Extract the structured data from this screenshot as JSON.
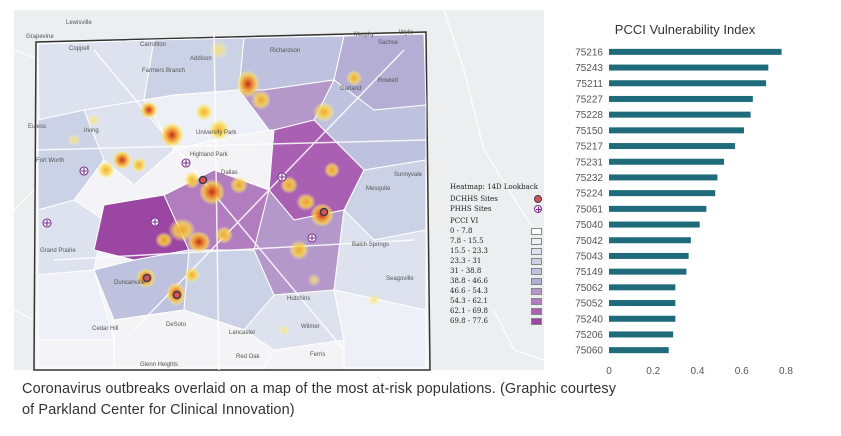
{
  "map": {
    "legend": {
      "heatmap_label": "Heatmap: 14D Lookback",
      "dchhs_label": "DCHHS Sites",
      "phhs_label": "PHHS Sites",
      "vi_title": "PCCI VI",
      "ranges": [
        {
          "label": "0 - 7.8",
          "color": "#ffffff"
        },
        {
          "label": "7.8 - 15.5",
          "color": "#edf0f6"
        },
        {
          "label": "15.5 - 23.3",
          "color": "#dde2ee"
        },
        {
          "label": "23.3 - 31",
          "color": "#ccd2e6"
        },
        {
          "label": "31 - 38.8",
          "color": "#bfc2de"
        },
        {
          "label": "38.8 - 46.6",
          "color": "#b4aed4"
        },
        {
          "label": "46.6 - 54.3",
          "color": "#b598ca"
        },
        {
          "label": "54.3 - 62.1",
          "color": "#b27dbf"
        },
        {
          "label": "62.1 - 69.8",
          "color": "#a960b2"
        },
        {
          "label": "69.8 - 77.6",
          "color": "#9c46a4"
        }
      ]
    },
    "city_labels": [
      "Lewisville",
      "Grapevine",
      "Coppell",
      "Carrollton",
      "Richardson",
      "Murphy",
      "Wylie",
      "Sachse",
      "Farmers Branch",
      "Addison",
      "Rowlett",
      "Garland",
      "Euless",
      "Irving",
      "University Park",
      "Fort Worth",
      "Highland Park",
      "Sunnyvale",
      "Dallas",
      "Mesquite",
      "Grand Prairie",
      "Balch Springs",
      "Duncanville",
      "Hutchins",
      "Seagoville",
      "Cedar Hill",
      "DeSoto",
      "Lancaster",
      "Wilmer",
      "Glenn Heights",
      "Red Oak",
      "Ferris"
    ]
  },
  "chart_data": {
    "type": "bar",
    "orientation": "horizontal",
    "title": "PCCI Vulnerability Index",
    "categories": [
      "75216",
      "75243",
      "75211",
      "75227",
      "75228",
      "75150",
      "75217",
      "75231",
      "75232",
      "75224",
      "75061",
      "75040",
      "75042",
      "75043",
      "75149",
      "75062",
      "75052",
      "75240",
      "75206",
      "75060"
    ],
    "values": [
      0.78,
      0.72,
      0.71,
      0.65,
      0.64,
      0.61,
      0.57,
      0.52,
      0.49,
      0.48,
      0.44,
      0.41,
      0.37,
      0.36,
      0.35,
      0.3,
      0.3,
      0.3,
      0.29,
      0.27
    ],
    "xticks": [
      "0",
      "0.2",
      "0.4",
      "0.6",
      "0.8"
    ],
    "xlim": [
      0,
      0.8
    ],
    "bar_color": "#1f6b7b",
    "grid": false
  },
  "caption": {
    "line1": "Coronavirus outbreaks overlaid on a map of the most at-risk populations. (Graphic courtesy",
    "line2": "of Parkland Center for Clinical Innovation)"
  }
}
